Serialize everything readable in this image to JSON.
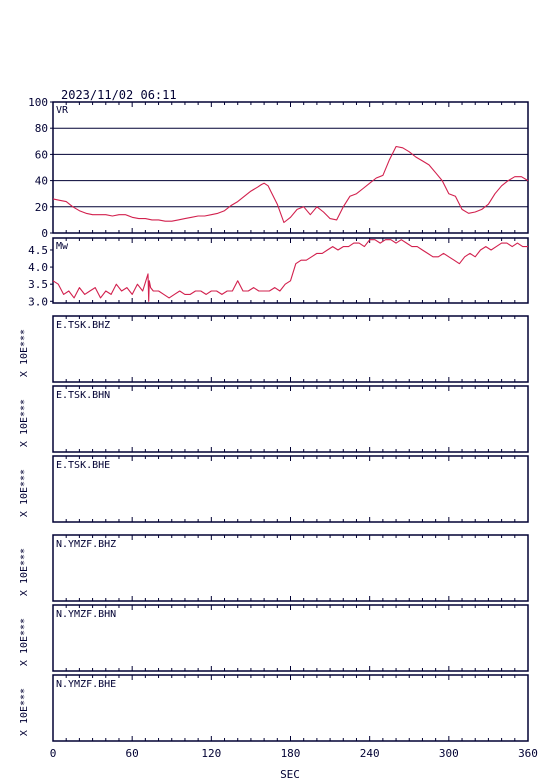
{
  "header": {
    "timestamp": "2023/11/02 06:11"
  },
  "xaxis": {
    "label": "SEC",
    "ticks": [
      0,
      60,
      120,
      180,
      240,
      300,
      360
    ],
    "range": [
      0,
      360
    ]
  },
  "trace_scale_label": "X 10E***",
  "colors": {
    "frame": "#000033",
    "series": "#d2214e",
    "background": "#ffffff"
  },
  "chart_data": [
    {
      "type": "line",
      "panel_label": "VR",
      "ylim": [
        0,
        100
      ],
      "yticks": [
        0,
        20,
        40,
        60,
        80,
        100
      ],
      "grid": true,
      "x": [
        0,
        5,
        10,
        15,
        20,
        25,
        30,
        35,
        40,
        45,
        50,
        55,
        60,
        65,
        70,
        75,
        80,
        85,
        90,
        95,
        100,
        105,
        110,
        115,
        120,
        125,
        130,
        135,
        140,
        145,
        150,
        155,
        158,
        160,
        163,
        165,
        170,
        175,
        180,
        185,
        190,
        195,
        200,
        205,
        210,
        215,
        220,
        225,
        230,
        235,
        240,
        245,
        250,
        255,
        260,
        265,
        270,
        275,
        280,
        285,
        290,
        295,
        300,
        305,
        310,
        315,
        320,
        325,
        330,
        335,
        340,
        345,
        350,
        355,
        360
      ],
      "values": [
        26,
        25,
        24,
        20,
        17,
        15,
        14,
        14,
        14,
        13,
        14,
        14,
        12,
        11,
        11,
        10,
        10,
        9,
        9,
        10,
        11,
        12,
        13,
        13,
        14,
        15,
        17,
        21,
        24,
        28,
        32,
        35,
        37,
        38,
        36,
        32,
        22,
        8,
        12,
        18,
        20,
        14,
        20,
        16,
        11,
        10,
        20,
        28,
        30,
        34,
        38,
        42,
        44,
        56,
        66,
        65,
        62,
        58,
        55,
        52,
        46,
        40,
        30,
        28,
        18,
        15,
        16,
        18,
        22,
        30,
        36,
        40,
        43,
        43,
        40
      ]
    },
    {
      "type": "line",
      "panel_label": "Mw",
      "ylim": [
        2.95,
        4.85
      ],
      "yticks": [
        3.0,
        3.5,
        4.0,
        4.5
      ],
      "grid": false,
      "x": [
        0,
        4,
        8,
        12,
        16,
        20,
        24,
        28,
        32,
        36,
        40,
        44,
        48,
        52,
        56,
        60,
        64,
        68,
        72,
        72.5,
        73,
        74,
        76,
        80,
        84,
        88,
        92,
        96,
        100,
        104,
        108,
        112,
        116,
        120,
        124,
        128,
        132,
        136,
        140,
        144,
        148,
        152,
        156,
        160,
        164,
        168,
        172,
        176,
        180,
        184,
        188,
        192,
        196,
        200,
        204,
        208,
        212,
        216,
        220,
        224,
        228,
        232,
        236,
        240,
        244,
        248,
        252,
        256,
        260,
        264,
        268,
        272,
        276,
        280,
        284,
        288,
        292,
        296,
        300,
        304,
        308,
        312,
        316,
        320,
        324,
        328,
        332,
        336,
        340,
        344,
        348,
        352,
        356,
        360
      ],
      "values": [
        3.6,
        3.5,
        3.2,
        3.3,
        3.1,
        3.4,
        3.2,
        3.3,
        3.4,
        3.1,
        3.3,
        3.2,
        3.5,
        3.3,
        3.4,
        3.2,
        3.5,
        3.3,
        3.8,
        3.0,
        3.6,
        3.4,
        3.3,
        3.3,
        3.2,
        3.1,
        3.2,
        3.3,
        3.2,
        3.2,
        3.3,
        3.3,
        3.2,
        3.3,
        3.3,
        3.2,
        3.3,
        3.3,
        3.6,
        3.3,
        3.3,
        3.4,
        3.3,
        3.3,
        3.3,
        3.4,
        3.3,
        3.5,
        3.6,
        4.1,
        4.2,
        4.2,
        4.3,
        4.4,
        4.4,
        4.5,
        4.6,
        4.5,
        4.6,
        4.6,
        4.7,
        4.7,
        4.6,
        4.8,
        4.8,
        4.7,
        4.8,
        4.8,
        4.7,
        4.8,
        4.7,
        4.6,
        4.6,
        4.5,
        4.4,
        4.3,
        4.3,
        4.4,
        4.3,
        4.2,
        4.1,
        4.3,
        4.4,
        4.3,
        4.5,
        4.6,
        4.5,
        4.6,
        4.7,
        4.7,
        4.6,
        4.7,
        4.6,
        4.6
      ]
    }
  ],
  "traces": [
    {
      "label": "E.TSK.BHZ"
    },
    {
      "label": "E.TSK.BHN"
    },
    {
      "label": "E.TSK.BHE"
    },
    {
      "label": "N.YMZF.BHZ"
    },
    {
      "label": "N.YMZF.BHN"
    },
    {
      "label": "N.YMZF.BHE"
    }
  ]
}
